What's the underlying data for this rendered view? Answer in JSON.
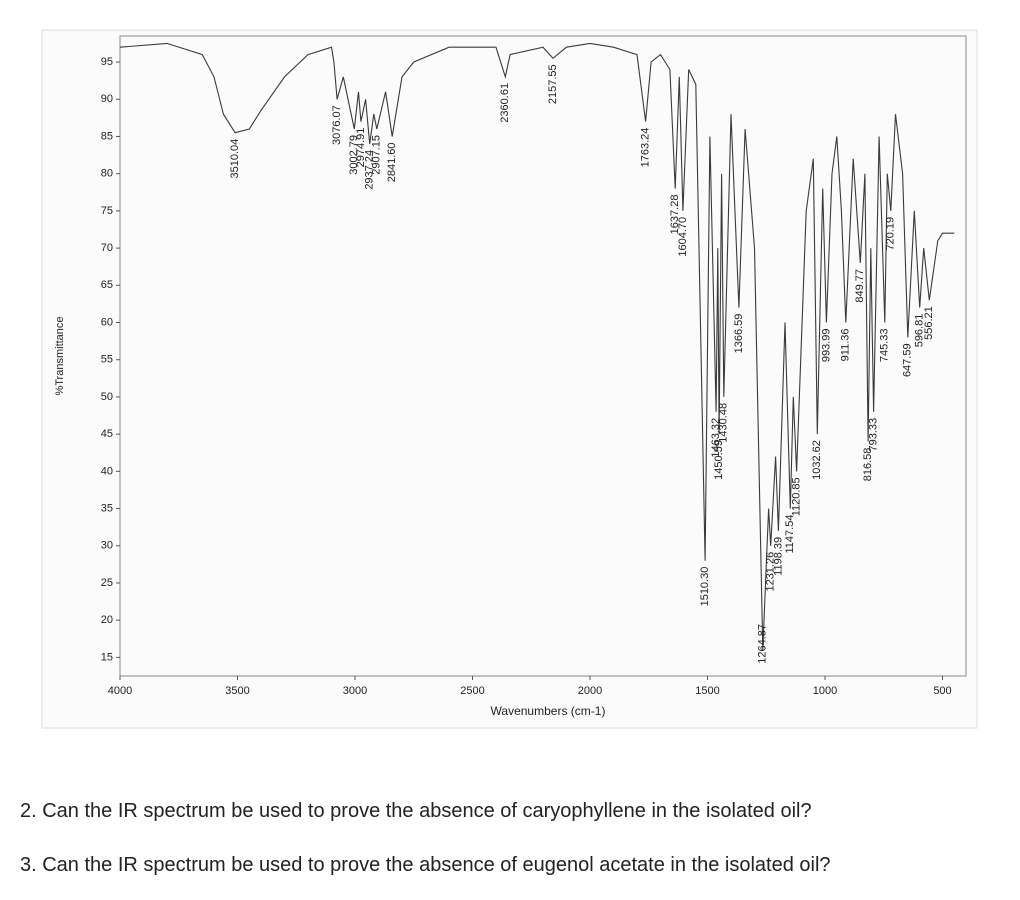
{
  "chart_data": {
    "type": "line",
    "xlabel": "Wavenumbers (cm-1)",
    "ylabel": "%Transmittance",
    "x": [
      4000,
      3800,
      3650,
      3600,
      3560,
      3510.04,
      3450,
      3400,
      3300,
      3200,
      3100,
      3090,
      3076.07,
      3050,
      3002.79,
      2985,
      2974.91,
      2955,
      2937.24,
      2920,
      2907.15,
      2870,
      2841.6,
      2800,
      2750,
      2600,
      2500,
      2400,
      2360.61,
      2340,
      2200,
      2157.55,
      2100,
      2000,
      1900,
      1800,
      1763.24,
      1740,
      1700,
      1660,
      1637.28,
      1620,
      1604.7,
      1580,
      1550,
      1510.3,
      1490,
      1463.32,
      1456,
      1450.59,
      1440,
      1430.48,
      1400,
      1366.59,
      1340,
      1300,
      1264.87,
      1240,
      1231.26,
      1210,
      1198.39,
      1170,
      1147.54,
      1135,
      1120.85,
      1080,
      1050,
      1032.62,
      1010,
      993.99,
      970,
      950,
      930,
      911.36,
      880,
      849.77,
      830,
      816.58,
      805,
      793.33,
      770,
      745.33,
      735,
      720.19,
      700,
      670,
      647.59,
      620,
      596.81,
      580,
      556.21,
      520,
      500,
      450
    ],
    "values": [
      97,
      97.5,
      96,
      93,
      88,
      85.5,
      86,
      88.5,
      93,
      96,
      97,
      95,
      90,
      93,
      86,
      91,
      87,
      90,
      84,
      88,
      86,
      91,
      85,
      93,
      95,
      97,
      97,
      97,
      93,
      96,
      97,
      95.5,
      97,
      97.5,
      97,
      96,
      87,
      95,
      96,
      94,
      78,
      93,
      75,
      94,
      92,
      28,
      85,
      48,
      70,
      45,
      80,
      50,
      88,
      62,
      86,
      70,
      16,
      35,
      30,
      42,
      32,
      60,
      35,
      50,
      40,
      75,
      82,
      45,
      78,
      60,
      80,
      85,
      75,
      60,
      82,
      68,
      80,
      44,
      70,
      48,
      85,
      60,
      80,
      75,
      88,
      80,
      58,
      75,
      62,
      70,
      63,
      71,
      72,
      72
    ],
    "color": "#3a3a3a",
    "xlim": [
      4000,
      400
    ],
    "ylim": [
      12.5,
      98.5
    ],
    "xticks": [
      4000,
      3500,
      3000,
      2500,
      2000,
      1500,
      1000,
      500
    ],
    "yticks": [
      15,
      20,
      25,
      30,
      35,
      40,
      45,
      50,
      55,
      60,
      65,
      70,
      75,
      80,
      85,
      90,
      95
    ],
    "peaks": [
      3510.04,
      3076.07,
      3002.79,
      2974.91,
      2937.24,
      2907.15,
      {
        "value": 2841.6,
        "label": "2841.60"
      },
      2360.61,
      2157.55,
      1763.24,
      1637.28,
      {
        "value": 1604.7,
        "label": "1604.70"
      },
      {
        "value": 1510.3,
        "label": "1510.30"
      },
      1463.32,
      1450.59,
      1430.48,
      1366.59,
      1264.87,
      1231.26,
      1198.39,
      1147.54,
      1120.85,
      1032.62,
      993.99,
      911.36,
      849.77,
      816.58,
      793.33,
      745.33,
      720.19,
      647.59,
      596.81,
      556.21
    ]
  },
  "questions": [
    "2. Can the IR spectrum be used to prove the absence of caryophyllene in the isolated oil?",
    "3. Can the IR spectrum be used to prove the absence of eugenol acetate in the isolated oil?"
  ]
}
